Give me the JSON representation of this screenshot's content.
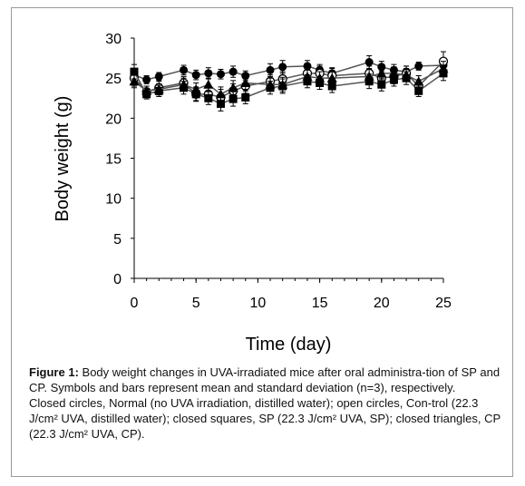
{
  "chart_data": {
    "type": "line",
    "xlabel": "Time (day)",
    "ylabel": "Body weight (g)",
    "xlim": [
      0,
      25
    ],
    "ylim": [
      0,
      30
    ],
    "xticks": [
      0,
      5,
      10,
      15,
      20,
      25
    ],
    "yticks": [
      0,
      5,
      10,
      15,
      20,
      25,
      30
    ],
    "grid": false,
    "series": [
      {
        "marker": "closed-circle",
        "x": [
          0,
          1,
          2,
          4,
          5,
          6,
          7,
          8,
          9,
          11,
          12,
          14,
          15,
          16,
          19,
          20,
          21,
          22,
          23,
          25
        ],
        "y": [
          25.4,
          24.8,
          25.2,
          26.0,
          25.4,
          25.6,
          25.5,
          25.8,
          25.3,
          26.0,
          26.4,
          26.5,
          26.0,
          25.6,
          27.0,
          26.4,
          26.0,
          25.8,
          26.5,
          26.6
        ],
        "err": [
          0.8,
          0.5,
          0.5,
          0.6,
          0.6,
          0.7,
          0.6,
          0.7,
          0.6,
          0.8,
          0.8,
          0.7,
          0.7,
          0.7,
          0.8,
          0.7,
          0.7,
          0.7,
          0.5,
          0.9
        ]
      },
      {
        "marker": "open-circle",
        "x": [
          0,
          1,
          2,
          4,
          5,
          6,
          7,
          8,
          9,
          11,
          12,
          14,
          15,
          16,
          19,
          20,
          21,
          22,
          23,
          25
        ],
        "y": [
          25.0,
          23.3,
          23.8,
          24.4,
          23.0,
          23.0,
          22.6,
          23.4,
          24.0,
          24.6,
          24.9,
          25.6,
          25.6,
          25.3,
          25.6,
          25.0,
          25.2,
          25.6,
          24.0,
          27.1
        ],
        "err": [
          1.0,
          0.7,
          0.8,
          0.8,
          0.9,
          0.9,
          1.0,
          0.9,
          0.9,
          0.8,
          0.9,
          0.8,
          0.9,
          0.9,
          0.9,
          0.9,
          0.9,
          0.9,
          0.8,
          1.2
        ]
      },
      {
        "marker": "closed-square",
        "x": [
          0,
          1,
          2,
          4,
          5,
          6,
          7,
          8,
          9,
          11,
          12,
          14,
          15,
          16,
          19,
          20,
          21,
          22,
          23,
          25
        ],
        "y": [
          25.8,
          23.0,
          23.4,
          23.8,
          23.0,
          22.5,
          21.8,
          22.4,
          22.6,
          23.8,
          24.0,
          24.6,
          24.4,
          24.0,
          24.6,
          24.2,
          24.8,
          25.0,
          23.4,
          25.6
        ],
        "err": [
          0.9,
          0.6,
          0.7,
          0.8,
          0.8,
          0.8,
          0.9,
          0.9,
          0.8,
          0.8,
          0.9,
          0.8,
          0.8,
          0.8,
          0.9,
          0.8,
          0.8,
          0.8,
          0.7,
          0.9
        ]
      },
      {
        "marker": "closed-triangle",
        "x": [
          0,
          1,
          2,
          4,
          5,
          6,
          7,
          8,
          9,
          11,
          12,
          14,
          15,
          16,
          19,
          20,
          21,
          22,
          23,
          25
        ],
        "y": [
          24.6,
          23.4,
          23.6,
          24.2,
          23.6,
          24.2,
          23.0,
          23.8,
          24.4,
          24.2,
          24.2,
          25.2,
          25.0,
          25.0,
          25.2,
          25.6,
          25.6,
          25.4,
          24.6,
          26.2
        ],
        "err": [
          0.8,
          0.6,
          0.7,
          0.8,
          0.8,
          0.8,
          0.9,
          0.9,
          0.8,
          0.8,
          0.9,
          0.8,
          0.8,
          0.8,
          0.9,
          0.8,
          0.8,
          0.8,
          0.7,
          0.9
        ]
      }
    ]
  },
  "caption": {
    "label": "Figure 1:",
    "text": " Body weight changes in UVA-irradiated mice after oral administra-tion of SP and CP. Symbols and bars represent mean and standard deviation (n=3), respectively.",
    "legend_text": "Closed circles, Normal (no UVA irradiation, distilled water); open circles, Con-trol (22.3 J/cm² UVA, distilled water); closed squares, SP (22.3 J/cm² UVA, SP); closed triangles, CP (22.3 J/cm² UVA, CP)."
  }
}
